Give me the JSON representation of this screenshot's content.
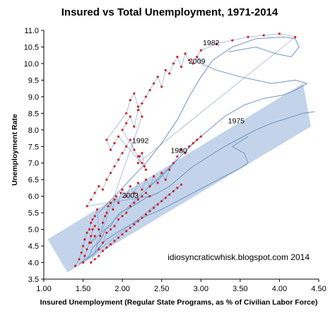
{
  "chart_data": {
    "type": "scatter",
    "title": "Insured vs Total Unemployment, 1971-2014",
    "xlabel": "Insured Unemployment (Regular State Programs, as % of Civilian Labor Force)",
    "ylabel": "Unemployment Rate",
    "xlim": [
      1.0,
      4.5
    ],
    "ylim": [
      3.5,
      11.0
    ],
    "x_ticks": [
      "1.00",
      "1.50",
      "2.00",
      "2.50",
      "3.00",
      "3.50",
      "4.00",
      "4.50"
    ],
    "y_ticks": [
      "3.5",
      "4.0",
      "4.5",
      "5.0",
      "5.5",
      "6.0",
      "6.5",
      "7.0",
      "7.5",
      "8.0",
      "8.5",
      "9.0",
      "9.5",
      "10.0",
      "10.5",
      "11.0"
    ],
    "grid": false,
    "legend": "none",
    "band": {
      "description": "shaded trend band",
      "corners": [
        [
          1.05,
          4.7
        ],
        [
          1.3,
          3.7
        ],
        [
          4.4,
          8.1
        ],
        [
          4.3,
          9.4
        ]
      ]
    },
    "series": [
      {
        "style": "line",
        "points": [
          [
            1.45,
            3.95
          ],
          [
            1.5,
            4.05
          ],
          [
            1.58,
            4.2
          ],
          [
            1.62,
            4.45
          ],
          [
            1.7,
            4.6
          ],
          [
            1.75,
            4.8
          ],
          [
            1.78,
            5.0
          ],
          [
            1.85,
            5.1
          ],
          [
            1.9,
            5.3
          ],
          [
            1.95,
            5.45
          ],
          [
            2.0,
            5.55
          ],
          [
            2.1,
            5.65
          ],
          [
            2.2,
            5.8
          ],
          [
            2.3,
            5.95
          ],
          [
            2.45,
            6.1
          ],
          [
            2.6,
            6.3
          ],
          [
            2.75,
            6.6
          ],
          [
            2.9,
            6.9
          ],
          [
            3.1,
            7.2
          ],
          [
            3.3,
            7.5
          ],
          [
            3.5,
            7.75
          ],
          [
            3.7,
            8.0
          ],
          [
            3.9,
            8.2
          ],
          [
            4.1,
            8.35
          ],
          [
            4.3,
            8.5
          ],
          [
            4.45,
            8.55
          ]
        ]
      },
      {
        "style": "line",
        "points": [
          [
            1.55,
            4.1
          ],
          [
            1.65,
            4.3
          ],
          [
            1.72,
            4.5
          ],
          [
            1.8,
            4.7
          ],
          [
            1.9,
            4.85
          ],
          [
            2.0,
            5.0
          ],
          [
            2.15,
            5.2
          ],
          [
            2.3,
            5.4
          ],
          [
            2.5,
            5.6
          ],
          [
            2.7,
            5.85
          ],
          [
            2.9,
            6.1
          ],
          [
            3.1,
            6.35
          ],
          [
            3.3,
            6.6
          ],
          [
            3.5,
            6.85
          ],
          [
            3.6,
            7.0
          ],
          [
            3.55,
            7.3
          ],
          [
            3.4,
            7.5
          ],
          [
            3.6,
            7.8
          ]
        ]
      },
      {
        "style": "line",
        "points": [
          [
            2.3,
            6.2
          ],
          [
            2.5,
            6.6
          ],
          [
            2.7,
            7.1
          ],
          [
            2.9,
            7.6
          ],
          [
            3.1,
            8.0
          ],
          [
            3.3,
            8.4
          ],
          [
            3.55,
            8.75
          ],
          [
            3.8,
            8.95
          ],
          [
            4.05,
            9.05
          ],
          [
            4.2,
            9.2
          ],
          [
            4.35,
            9.4
          ],
          [
            4.2,
            9.5
          ],
          [
            3.9,
            9.4
          ],
          [
            3.5,
            9.6
          ],
          [
            3.2,
            9.8
          ],
          [
            3.0,
            10.0
          ],
          [
            2.95,
            10.2
          ]
        ]
      },
      {
        "style": "line",
        "points": [
          [
            1.7,
            5.5
          ],
          [
            1.9,
            6.0
          ],
          [
            2.1,
            6.5
          ],
          [
            2.3,
            7.0
          ],
          [
            2.5,
            7.6
          ],
          [
            2.7,
            8.3
          ],
          [
            2.85,
            9.0
          ],
          [
            3.0,
            9.6
          ],
          [
            3.15,
            10.1
          ],
          [
            3.4,
            10.5
          ],
          [
            3.7,
            10.75
          ],
          [
            4.05,
            10.8
          ],
          [
            4.2,
            10.75
          ],
          [
            4.25,
            10.5
          ],
          [
            4.15,
            10.2
          ],
          [
            3.95,
            10.3
          ],
          [
            3.7,
            10.5
          ],
          [
            3.35,
            10.35
          ]
        ]
      },
      {
        "style": "markers",
        "points": [
          [
            1.4,
            3.9
          ],
          [
            1.45,
            4.1
          ],
          [
            1.48,
            4.3
          ],
          [
            1.5,
            4.5
          ],
          [
            1.52,
            4.7
          ],
          [
            1.55,
            4.9
          ],
          [
            1.58,
            5.0
          ],
          [
            1.6,
            5.2
          ],
          [
            1.62,
            5.3
          ],
          [
            1.65,
            5.4
          ],
          [
            1.68,
            5.6
          ],
          [
            1.7,
            5.0
          ],
          [
            1.72,
            4.8
          ],
          [
            1.75,
            5.2
          ],
          [
            1.78,
            5.4
          ],
          [
            1.8,
            5.5
          ],
          [
            1.82,
            5.7
          ],
          [
            1.85,
            5.8
          ],
          [
            1.88,
            5.6
          ],
          [
            1.9,
            5.9
          ],
          [
            1.92,
            6.0
          ],
          [
            1.95,
            5.8
          ],
          [
            1.98,
            6.1
          ],
          [
            2.0,
            6.2
          ],
          [
            2.05,
            6.0
          ],
          [
            2.1,
            6.3
          ],
          [
            2.15,
            6.1
          ],
          [
            2.2,
            6.4
          ],
          [
            2.25,
            6.2
          ],
          [
            2.3,
            6.5
          ],
          [
            2.35,
            6.3
          ],
          [
            2.4,
            6.6
          ],
          [
            2.45,
            6.4
          ],
          [
            2.5,
            6.7
          ],
          [
            2.55,
            6.5
          ],
          [
            2.6,
            6.8
          ],
          [
            2.65,
            7.0
          ],
          [
            2.7,
            7.2
          ],
          [
            2.75,
            7.4
          ],
          [
            2.8,
            7.3
          ],
          [
            2.85,
            7.5
          ],
          [
            2.9,
            7.6
          ],
          [
            2.95,
            7.7
          ],
          [
            3.0,
            7.8
          ],
          [
            1.6,
            4.6
          ],
          [
            1.65,
            4.8
          ],
          [
            1.7,
            4.4
          ],
          [
            1.75,
            4.6
          ],
          [
            1.8,
            4.9
          ],
          [
            1.85,
            5.0
          ],
          [
            1.9,
            5.1
          ],
          [
            1.95,
            5.3
          ],
          [
            2.0,
            5.4
          ],
          [
            2.05,
            5.5
          ],
          [
            2.1,
            5.7
          ],
          [
            2.15,
            5.8
          ],
          [
            2.2,
            5.9
          ],
          [
            2.25,
            6.0
          ],
          [
            2.3,
            6.1
          ],
          [
            2.35,
            6.0
          ],
          [
            1.55,
            5.7
          ],
          [
            1.6,
            5.9
          ],
          [
            1.65,
            6.1
          ],
          [
            1.7,
            6.3
          ],
          [
            1.75,
            6.2
          ],
          [
            1.8,
            6.5
          ],
          [
            1.85,
            6.7
          ],
          [
            1.9,
            6.9
          ],
          [
            1.95,
            7.1
          ],
          [
            2.0,
            7.3
          ],
          [
            2.05,
            7.5
          ],
          [
            2.1,
            7.7
          ],
          [
            2.15,
            7.4
          ],
          [
            2.2,
            7.2
          ],
          [
            2.25,
            7.0
          ],
          [
            2.3,
            6.8
          ],
          [
            2.0,
            8.0
          ],
          [
            2.05,
            8.2
          ],
          [
            2.1,
            8.4
          ],
          [
            2.15,
            8.1
          ],
          [
            2.2,
            8.6
          ],
          [
            2.25,
            8.8
          ],
          [
            2.3,
            9.0
          ],
          [
            2.35,
            9.2
          ],
          [
            2.4,
            9.4
          ],
          [
            2.45,
            9.6
          ],
          [
            2.5,
            9.3
          ],
          [
            2.55,
            9.8
          ],
          [
            2.6,
            9.7
          ],
          [
            2.65,
            10.0
          ],
          [
            2.7,
            10.2
          ],
          [
            2.75,
            9.9
          ],
          [
            2.8,
            10.3
          ],
          [
            2.85,
            10.1
          ],
          [
            2.9,
            10.0
          ],
          [
            2.95,
            10.2
          ],
          [
            3.0,
            10.4
          ],
          [
            3.2,
            10.6
          ],
          [
            3.4,
            10.7
          ],
          [
            3.6,
            10.8
          ],
          [
            3.8,
            10.85
          ],
          [
            4.0,
            10.9
          ],
          [
            4.2,
            10.8
          ],
          [
            2.2,
            7.0
          ],
          [
            2.22,
            7.2
          ],
          [
            2.25,
            7.3
          ],
          [
            2.28,
            6.9
          ],
          [
            1.95,
            7.8
          ],
          [
            1.9,
            7.6
          ],
          [
            1.85,
            7.4
          ],
          [
            1.8,
            7.7
          ],
          [
            2.05,
            8.5
          ],
          [
            2.1,
            8.9
          ],
          [
            2.15,
            9.1
          ],
          [
            2.2,
            8.7
          ],
          [
            2.25,
            8.4
          ],
          [
            1.6,
            4.0
          ],
          [
            1.65,
            4.1
          ],
          [
            1.7,
            4.2
          ],
          [
            1.75,
            4.35
          ],
          [
            1.8,
            4.45
          ],
          [
            1.85,
            4.55
          ],
          [
            1.9,
            4.65
          ],
          [
            1.95,
            4.75
          ],
          [
            2.0,
            4.85
          ],
          [
            2.05,
            4.95
          ],
          [
            2.1,
            5.05
          ],
          [
            2.15,
            5.15
          ],
          [
            2.2,
            5.25
          ],
          [
            2.25,
            5.35
          ],
          [
            2.3,
            5.45
          ],
          [
            2.35,
            5.55
          ],
          [
            2.4,
            5.65
          ],
          [
            2.45,
            5.75
          ],
          [
            2.5,
            5.85
          ],
          [
            2.55,
            5.95
          ],
          [
            2.6,
            6.05
          ],
          [
            2.65,
            6.15
          ],
          [
            2.7,
            6.25
          ],
          [
            2.75,
            6.35
          ],
          [
            1.5,
            4.0
          ],
          [
            1.52,
            4.2
          ],
          [
            1.55,
            4.4
          ],
          [
            1.58,
            4.6
          ],
          [
            1.6,
            4.8
          ],
          [
            1.62,
            5.0
          ],
          [
            1.65,
            5.1
          ]
        ]
      }
    ],
    "annotations": [
      {
        "text": "1982",
        "x": 3.13,
        "y": 10.55
      },
      {
        "text": "2009",
        "x": 2.95,
        "y": 10.0
      },
      {
        "text": "1975",
        "x": 3.45,
        "y": 8.2
      },
      {
        "text": "1992",
        "x": 2.23,
        "y": 7.6
      },
      {
        "text": "1980",
        "x": 2.72,
        "y": 7.3
      },
      {
        "text": "2003",
        "x": 2.1,
        "y": 5.95
      }
    ],
    "credit": "idiosyncraticwhisk.blogspot.com 2014",
    "colors": {
      "band": "#b8cde6",
      "line": "#6f93c4",
      "marker": "#d42020",
      "axis": "#000000"
    }
  }
}
